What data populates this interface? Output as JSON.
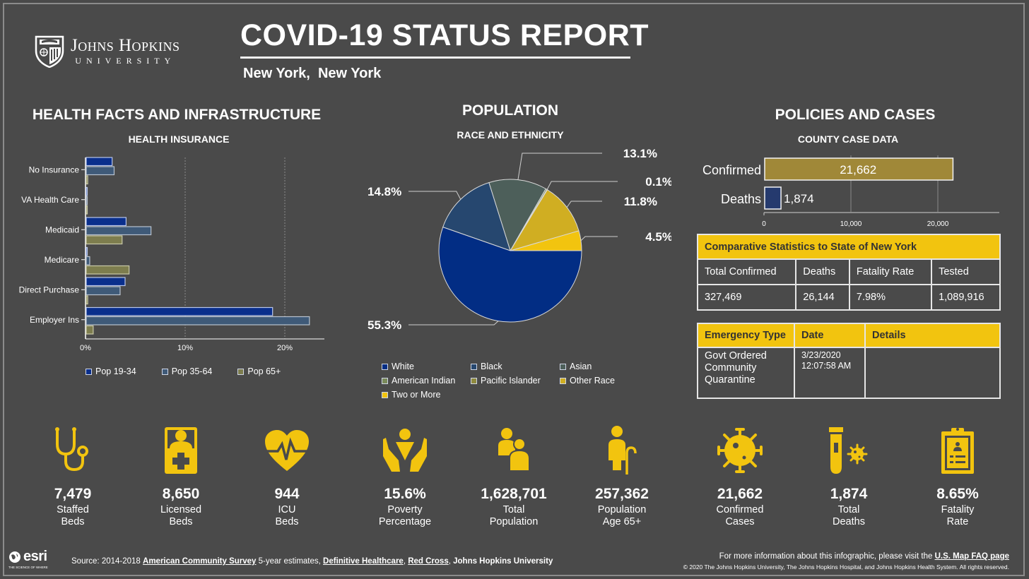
{
  "header": {
    "org_name": "Johns Hopkins",
    "org_sub": "UNIVERSITY",
    "title": "COVID-19 STATUS REPORT",
    "location": "New York,  New York"
  },
  "health": {
    "section_title": "HEALTH FACTS AND INFRASTRUCTURE",
    "chart_title": "HEALTH INSURANCE"
  },
  "population": {
    "section_title": "POPULATION",
    "chart_title": "RACE AND ETHNICITY"
  },
  "policies": {
    "section_title": "POLICIES AND CASES",
    "chart_title": "COUNTY CASE DATA",
    "comparative": {
      "title": "Comparative Statistics to State of New York",
      "headers": [
        "Total Confirmed",
        "Deaths",
        "Fatality Rate",
        "Tested"
      ],
      "values": [
        "327,469",
        "26,144",
        "7.98%",
        "1,089,916"
      ]
    },
    "emergency": {
      "headers": [
        "Emergency Type",
        "Date",
        "Details"
      ],
      "rows": [
        {
          "type": "Govt Ordered Community Quarantine",
          "date_line1": "3/23/2020",
          "date_line2": "12:07:58 AM",
          "details": ""
        }
      ]
    }
  },
  "stats": [
    {
      "icon": "stethoscope-icon",
      "value": "7,479",
      "label1": "Staffed",
      "label2": "Beds"
    },
    {
      "icon": "hospital-bed-icon",
      "value": "8,650",
      "label1": "Licensed",
      "label2": "Beds"
    },
    {
      "icon": "heart-pulse-icon",
      "value": "944",
      "label1": "ICU",
      "label2": "Beds"
    },
    {
      "icon": "hands-person-icon",
      "value": "15.6%",
      "label1": "Poverty",
      "label2": "Percentage"
    },
    {
      "icon": "people-icon",
      "value": "1,628,701",
      "label1": "Total",
      "label2": "Population"
    },
    {
      "icon": "elderly-person-icon",
      "value": "257,362",
      "label1": "Population",
      "label2": "Age 65+"
    },
    {
      "icon": "virus-icon",
      "value": "21,662",
      "label1": "Confirmed",
      "label2": "Cases"
    },
    {
      "icon": "test-tube-virus-icon",
      "value": "1,874",
      "label1": "Total",
      "label2": "Deaths"
    },
    {
      "icon": "clipboard-icon",
      "value": "8.65%",
      "label1": "Fatality",
      "label2": "Rate"
    }
  ],
  "footer": {
    "source_prefix": "Source: 2014-2018 ",
    "link1": "American Community Survey",
    "mid1": " 5-year estimates, ",
    "link2": "Definitive Healthcare",
    "mid2": ", ",
    "link3": "Red Cross",
    "mid3": ", ",
    "tail": "Johns Hopkins University",
    "info_prefix": "For more information about this infographic, please visit the ",
    "info_link": "U.S. Map FAQ page",
    "copyright": "© 2020 The Johns Hopkins University, The Johns Hopkins Hospital, and Johns Hopkins Health System. All rights reserved.",
    "esri_name": "esri",
    "esri_tag": "THE SCIENCE OF WHERE"
  },
  "colors": {
    "background": "#4a4a4a",
    "accent_yellow": "#f2c40f",
    "pop_19_34": "#0a2f8c",
    "pop_35_64": "#3f5a78",
    "pop_65_plus": "#7d7d4e",
    "confirmed_bar": "#a08838",
    "deaths_bar": "#253a6e"
  },
  "chart_data": [
    {
      "type": "bar",
      "orientation": "horizontal",
      "title": "HEALTH INSURANCE",
      "categories": [
        "No Insurance",
        "VA Health Care",
        "Medicaid",
        "Medicare",
        "Direct Purchase",
        "Employer Ins"
      ],
      "series": [
        {
          "name": "Pop 19-34",
          "values": [
            2.6,
            0.1,
            4.0,
            0.1,
            3.9,
            18.7
          ]
        },
        {
          "name": "Pop 35-64",
          "values": [
            2.8,
            0.1,
            6.5,
            0.35,
            3.4,
            22.4
          ]
        },
        {
          "name": "Pop 65+",
          "values": [
            0.15,
            0.1,
            3.6,
            4.3,
            0.15,
            0.7
          ]
        }
      ],
      "xticks": [
        "0%",
        "10%",
        "20%"
      ],
      "xlim": [
        0,
        25
      ],
      "grid": true,
      "legend": "bottom"
    },
    {
      "type": "pie",
      "title": "RACE AND ETHNICITY",
      "slices": [
        {
          "name": "White",
          "value": 55.3,
          "label": "55.3%",
          "color": "#022d84"
        },
        {
          "name": "Black",
          "value": 14.8,
          "label": "14.8%",
          "color": "#26476f"
        },
        {
          "name": "Asian",
          "value": 13.1,
          "label": "13.1%",
          "color": "#4d5f5a"
        },
        {
          "name": "American Indian",
          "value": 0.3,
          "label": "",
          "color": "#7a8a5a"
        },
        {
          "name": "Pacific Islander",
          "value": 0.1,
          "label": "0.1%",
          "color": "#8f8a3e"
        },
        {
          "name": "Other Race",
          "value": 11.8,
          "label": "11.8%",
          "color": "#d0ae22"
        },
        {
          "name": "Two or More",
          "value": 4.5,
          "label": "4.5%",
          "color": "#f2c40f"
        }
      ],
      "legend": "bottom"
    },
    {
      "type": "bar",
      "orientation": "horizontal",
      "title": "COUNTY CASE DATA",
      "categories": [
        "Confirmed",
        "Deaths"
      ],
      "values": [
        21662,
        1874
      ],
      "value_labels": [
        "21,662",
        "1,874"
      ],
      "xticks": [
        "0",
        "10,000",
        "20,000"
      ],
      "xlim": [
        0,
        27000
      ],
      "grid": true
    }
  ]
}
